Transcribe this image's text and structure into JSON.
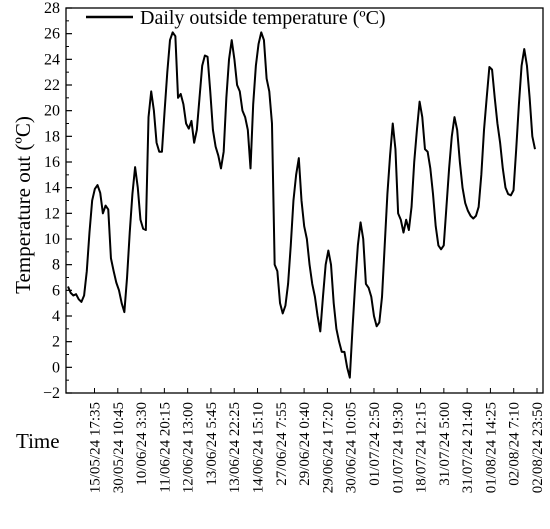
{
  "chart_data": {
    "type": "line",
    "title": "",
    "xlabel": "Time",
    "ylabel": "Temperature out (ºC)",
    "ylim": [
      -2,
      28
    ],
    "yticks": [
      -2,
      0,
      2,
      4,
      6,
      8,
      10,
      12,
      14,
      16,
      18,
      20,
      22,
      24,
      26,
      28
    ],
    "x_tick_labels": [
      "15/05/24 17:35",
      "30/05/24 10:45",
      "10/06/24 3:30",
      "11/06/24 20:15",
      "12/06/24 13:00",
      "13/06/24 5:45",
      "13/06/24 22:25",
      "14/06/24 15:10",
      "27/06/24 7:55",
      "29/06/24 0:40",
      "29/06/24 17:20",
      "30/06/24 10:05",
      "01/07/24 2:50",
      "01/07/24 19:30",
      "18/07/24 12:15",
      "31/07/24 5:00",
      "31/07/24 21:40",
      "01/08/24 14:25",
      "02/08/24 7:10",
      "02/08/24 23:50"
    ],
    "grid": false,
    "legend": "top-left",
    "series": [
      {
        "name": "Daily outside temperature (ºC)",
        "color": "#000000",
        "x_domain": [
          0,
          100
        ],
        "points": [
          [
            0,
            6.3
          ],
          [
            0.5,
            5.8
          ],
          [
            1,
            5.6
          ],
          [
            1.5,
            5.7
          ],
          [
            2,
            5.3
          ],
          [
            2.5,
            5.1
          ],
          [
            3,
            5.6
          ],
          [
            3.5,
            7.5
          ],
          [
            4,
            10.5
          ],
          [
            4.5,
            13
          ],
          [
            5,
            13.9
          ],
          [
            5.5,
            14.2
          ],
          [
            6,
            13.6
          ],
          [
            6.5,
            12
          ],
          [
            7,
            12.6
          ],
          [
            7.5,
            12.3
          ],
          [
            8,
            8.5
          ],
          [
            8.5,
            7.5
          ],
          [
            9,
            6.6
          ],
          [
            9.5,
            6
          ],
          [
            10,
            5
          ],
          [
            10.5,
            4.3
          ],
          [
            11,
            7
          ],
          [
            11.5,
            10.5
          ],
          [
            12,
            13.5
          ],
          [
            12.5,
            15.6
          ],
          [
            13,
            14
          ],
          [
            13.5,
            11.5
          ],
          [
            14,
            10.8
          ],
          [
            14.5,
            10.7
          ],
          [
            15,
            19.5
          ],
          [
            15.5,
            21.5
          ],
          [
            16,
            20
          ],
          [
            16.5,
            17.5
          ],
          [
            17,
            16.8
          ],
          [
            17.5,
            16.8
          ],
          [
            18,
            20
          ],
          [
            18.5,
            23
          ],
          [
            19,
            25.5
          ],
          [
            19.5,
            26.1
          ],
          [
            20,
            25.8
          ],
          [
            20.5,
            21
          ],
          [
            21,
            21.3
          ],
          [
            21.5,
            20.5
          ],
          [
            22,
            19
          ],
          [
            22.5,
            18.6
          ],
          [
            23,
            19.2
          ],
          [
            23.5,
            17.5
          ],
          [
            24,
            18.5
          ],
          [
            24.5,
            21
          ],
          [
            25,
            23.5
          ],
          [
            25.5,
            24.3
          ],
          [
            26,
            24.2
          ],
          [
            26.5,
            21.5
          ],
          [
            27,
            18.5
          ],
          [
            27.5,
            17.2
          ],
          [
            28,
            16.5
          ],
          [
            28.5,
            15.5
          ],
          [
            29,
            16.8
          ],
          [
            29.5,
            21
          ],
          [
            30,
            24
          ],
          [
            30.5,
            25.5
          ],
          [
            31,
            24
          ],
          [
            31.5,
            22
          ],
          [
            32,
            21.5
          ],
          [
            32.5,
            20
          ],
          [
            33,
            19.5
          ],
          [
            33.5,
            18.5
          ],
          [
            34,
            15.5
          ],
          [
            34.5,
            20.5
          ],
          [
            35,
            23.5
          ],
          [
            35.5,
            25.2
          ],
          [
            36,
            26.1
          ],
          [
            36.5,
            25.5
          ],
          [
            37,
            22.5
          ],
          [
            37.5,
            21.5
          ],
          [
            38,
            19
          ],
          [
            38.5,
            8
          ],
          [
            39,
            7.5
          ],
          [
            39.5,
            5
          ],
          [
            40,
            4.2
          ],
          [
            40.5,
            4.8
          ],
          [
            41,
            6.5
          ],
          [
            41.5,
            9.5
          ],
          [
            42,
            13
          ],
          [
            42.5,
            15
          ],
          [
            43,
            16.3
          ],
          [
            43.5,
            13
          ],
          [
            44,
            11
          ],
          [
            44.5,
            10
          ],
          [
            45,
            8
          ],
          [
            45.5,
            6.5
          ],
          [
            46,
            5.5
          ],
          [
            46.5,
            4
          ],
          [
            47,
            2.8
          ],
          [
            47.5,
            5.5
          ],
          [
            48,
            8
          ],
          [
            48.5,
            9.1
          ],
          [
            49,
            8
          ],
          [
            49.5,
            5
          ],
          [
            50,
            3
          ],
          [
            50.5,
            2
          ],
          [
            51,
            1.2
          ],
          [
            51.5,
            1.2
          ],
          [
            52,
            0
          ],
          [
            52.5,
            -0.8
          ],
          [
            53,
            3
          ],
          [
            53.5,
            6.5
          ],
          [
            54,
            9.5
          ],
          [
            54.5,
            11.3
          ],
          [
            55,
            10
          ],
          [
            55.5,
            6.5
          ],
          [
            56,
            6.2
          ],
          [
            56.5,
            5.5
          ],
          [
            57,
            4
          ],
          [
            57.5,
            3.2
          ],
          [
            58,
            3.5
          ],
          [
            58.5,
            5.5
          ],
          [
            59,
            9.5
          ],
          [
            59.5,
            13.5
          ],
          [
            60,
            16.5
          ],
          [
            60.5,
            19
          ],
          [
            61,
            17
          ],
          [
            61.5,
            12
          ],
          [
            62,
            11.5
          ],
          [
            62.5,
            10.5
          ],
          [
            63,
            11.5
          ],
          [
            63.5,
            10.7
          ],
          [
            64,
            12.5
          ],
          [
            64.5,
            16
          ],
          [
            65,
            18.5
          ],
          [
            65.5,
            20.7
          ],
          [
            66,
            19.5
          ],
          [
            66.5,
            17
          ],
          [
            67,
            16.8
          ],
          [
            67.5,
            15.5
          ],
          [
            68,
            13.5
          ],
          [
            68.5,
            11
          ],
          [
            69,
            9.5
          ],
          [
            69.5,
            9.2
          ],
          [
            70,
            9.5
          ],
          [
            70.5,
            12.5
          ],
          [
            71,
            15.5
          ],
          [
            71.5,
            18
          ],
          [
            72,
            19.5
          ],
          [
            72.5,
            18.5
          ],
          [
            73,
            16
          ],
          [
            73.5,
            14
          ],
          [
            74,
            12.8
          ],
          [
            74.5,
            12.2
          ],
          [
            75,
            11.8
          ],
          [
            75.5,
            11.6
          ],
          [
            76,
            11.8
          ],
          [
            76.5,
            12.5
          ],
          [
            77,
            15
          ],
          [
            77.5,
            18.5
          ],
          [
            78,
            21
          ],
          [
            78.5,
            23.4
          ],
          [
            79,
            23.2
          ],
          [
            79.5,
            21
          ],
          [
            80,
            19
          ],
          [
            80.5,
            17.5
          ],
          [
            81,
            15.5
          ],
          [
            81.5,
            14
          ],
          [
            82,
            13.5
          ],
          [
            82.5,
            13.4
          ],
          [
            83,
            13.8
          ],
          [
            83.5,
            17
          ],
          [
            84,
            20.5
          ],
          [
            84.5,
            23.5
          ],
          [
            85,
            24.8
          ],
          [
            85.5,
            23.5
          ],
          [
            86,
            21
          ],
          [
            86.5,
            18
          ],
          [
            87,
            17
          ]
        ]
      }
    ]
  }
}
